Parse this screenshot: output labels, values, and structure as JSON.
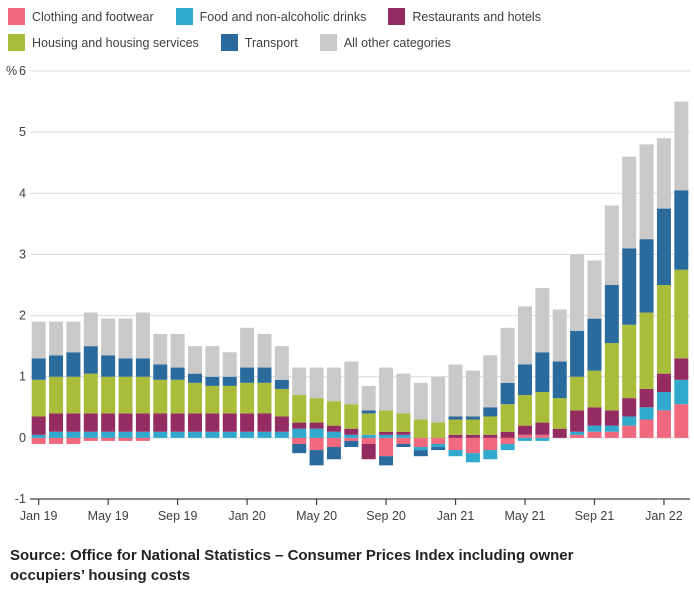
{
  "chart_data": {
    "type": "bar",
    "stacked": true,
    "title": "",
    "y_unit_label": "%",
    "ylim": [
      -1,
      6
    ],
    "yticks": [
      -1,
      0,
      1,
      2,
      3,
      4,
      5,
      6
    ],
    "x_tick_labels": [
      "Jan 19",
      "May 19",
      "Sep 19",
      "Jan 20",
      "May 20",
      "Sep 20",
      "Jan 21",
      "May 21",
      "Sep 21",
      "Jan 22"
    ],
    "x_tick_indices": [
      0,
      4,
      8,
      12,
      16,
      20,
      24,
      28,
      32,
      36
    ],
    "legend_position": "top",
    "grid": true,
    "categories": [
      "Jan 19",
      "Feb 19",
      "Mar 19",
      "Apr 19",
      "May 19",
      "Jun 19",
      "Jul 19",
      "Aug 19",
      "Sep 19",
      "Oct 19",
      "Nov 19",
      "Dec 19",
      "Jan 20",
      "Feb 20",
      "Mar 20",
      "Apr 20",
      "May 20",
      "Jun 20",
      "Jul 20",
      "Aug 20",
      "Sep 20",
      "Oct 20",
      "Nov 20",
      "Dec 20",
      "Jan 21",
      "Feb 21",
      "Mar 21",
      "Apr 21",
      "May 21",
      "Jun 21",
      "Jul 21",
      "Aug 21",
      "Sep 21",
      "Oct 21",
      "Nov 21",
      "Dec 21",
      "Jan 22",
      "Feb 22"
    ],
    "series": [
      {
        "name": "Clothing and footwear",
        "color": "#f0697e",
        "values": [
          -0.1,
          -0.1,
          -0.1,
          -0.05,
          -0.05,
          -0.05,
          -0.05,
          0.0,
          0.0,
          0.0,
          0.0,
          0.0,
          0.0,
          0.0,
          0.0,
          -0.1,
          -0.2,
          -0.15,
          -0.05,
          -0.1,
          -0.3,
          -0.1,
          -0.15,
          -0.1,
          -0.2,
          -0.25,
          -0.2,
          -0.1,
          0.05,
          0.05,
          0.0,
          0.05,
          0.1,
          0.1,
          0.2,
          0.3,
          0.45,
          0.55
        ]
      },
      {
        "name": "Food and non-alcoholic drinks",
        "color": "#30a9cd",
        "values": [
          0.05,
          0.1,
          0.1,
          0.1,
          0.1,
          0.1,
          0.1,
          0.1,
          0.1,
          0.1,
          0.1,
          0.1,
          0.1,
          0.1,
          0.1,
          0.15,
          0.15,
          0.1,
          0.05,
          0.05,
          0.05,
          0.05,
          -0.05,
          -0.05,
          -0.1,
          -0.15,
          -0.15,
          -0.1,
          -0.05,
          -0.05,
          0.0,
          0.05,
          0.1,
          0.1,
          0.15,
          0.2,
          0.3,
          0.4
        ]
      },
      {
        "name": "Restaurants and hotels",
        "color": "#942c61",
        "values": [
          0.3,
          0.3,
          0.3,
          0.3,
          0.3,
          0.3,
          0.3,
          0.3,
          0.3,
          0.3,
          0.3,
          0.3,
          0.3,
          0.3,
          0.25,
          0.1,
          0.1,
          0.1,
          0.1,
          -0.25,
          0.05,
          0.05,
          0.0,
          0.0,
          0.05,
          0.05,
          0.05,
          0.1,
          0.15,
          0.2,
          0.15,
          0.35,
          0.3,
          0.25,
          0.3,
          0.3,
          0.3,
          0.35
        ]
      },
      {
        "name": "Housing and housing services",
        "color": "#a9bd3b",
        "values": [
          0.6,
          0.6,
          0.6,
          0.65,
          0.6,
          0.6,
          0.6,
          0.55,
          0.55,
          0.5,
          0.45,
          0.45,
          0.5,
          0.5,
          0.45,
          0.45,
          0.4,
          0.4,
          0.4,
          0.35,
          0.35,
          0.3,
          0.3,
          0.25,
          0.25,
          0.25,
          0.3,
          0.45,
          0.5,
          0.5,
          0.5,
          0.55,
          0.6,
          1.1,
          1.2,
          1.25,
          1.45,
          1.45
        ]
      },
      {
        "name": "Transport",
        "color": "#2a6a9d",
        "values": [
          0.35,
          0.35,
          0.4,
          0.45,
          0.35,
          0.3,
          0.3,
          0.25,
          0.2,
          0.15,
          0.15,
          0.15,
          0.25,
          0.25,
          0.15,
          -0.15,
          -0.25,
          -0.2,
          -0.1,
          0.05,
          -0.15,
          -0.05,
          -0.1,
          -0.05,
          0.05,
          0.05,
          0.15,
          0.35,
          0.5,
          0.65,
          0.6,
          0.75,
          0.85,
          0.95,
          1.25,
          1.2,
          1.25,
          1.3
        ]
      },
      {
        "name": "All other categories",
        "color": "#c9c9c9",
        "values": [
          0.6,
          0.55,
          0.5,
          0.55,
          0.6,
          0.65,
          0.75,
          0.5,
          0.55,
          0.45,
          0.5,
          0.4,
          0.65,
          0.55,
          0.55,
          0.45,
          0.5,
          0.55,
          0.7,
          0.4,
          0.7,
          0.65,
          0.6,
          0.75,
          0.85,
          0.75,
          0.85,
          0.9,
          0.95,
          1.05,
          0.85,
          1.25,
          0.95,
          1.3,
          1.5,
          1.55,
          1.15,
          1.45
        ]
      }
    ]
  },
  "source": {
    "text": "Source: Office for National Statistics – Consumer Prices Index including owner occupiers’ housing costs"
  },
  "colors": {
    "gridline": "#d9d9d9",
    "axis": "#414042",
    "tick_text": "#414042"
  }
}
